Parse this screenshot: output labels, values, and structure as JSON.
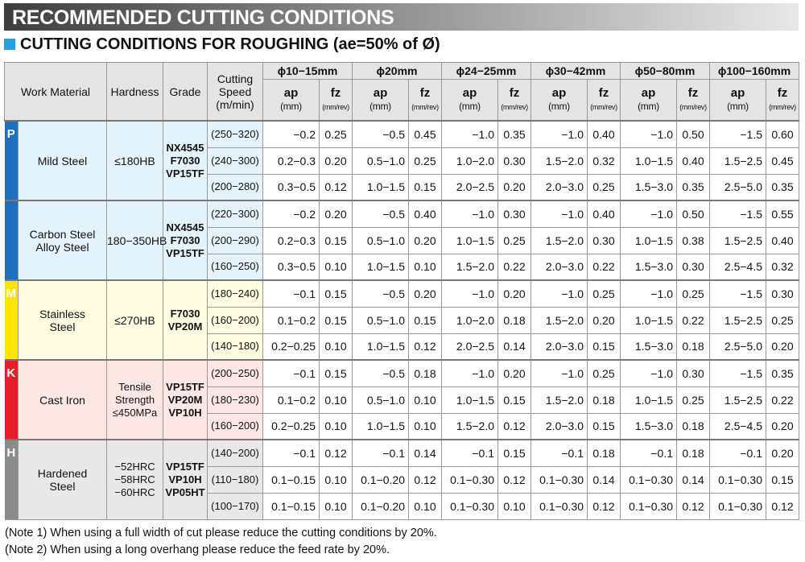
{
  "header": {
    "title": "RECOMMENDED CUTTING CONDITIONS",
    "subtitle": "CUTTING CONDITIONS FOR ROUGHING (ae=50% of Ø)"
  },
  "table": {
    "columns": {
      "work_material": "Work Material",
      "hardness": "Hardness",
      "grade": "Grade",
      "speed": [
        "Cutting",
        "Speed",
        "(m/min)"
      ],
      "diameters": [
        "ϕ10−15mm",
        "ϕ20mm",
        "ϕ24−25mm",
        "ϕ30−42mm",
        "ϕ50−80mm",
        "ϕ100−160mm"
      ],
      "ap": "ap",
      "ap_unit": "(mm)",
      "fz": "fz",
      "fz_unit": "(mm/rev)"
    },
    "groups": [
      {
        "letter": "P",
        "material": [
          "Mild Steel"
        ],
        "hardness": [
          "≤180HB"
        ],
        "grades": [
          "NX4545",
          "F7030",
          "VP15TF"
        ],
        "rows": [
          {
            "speed": "(250−320)",
            "values": [
              "−0.2",
              "0.25",
              "−0.5",
              "0.45",
              "−1.0",
              "0.35",
              "−1.0",
              "0.40",
              "−1.0",
              "0.50",
              "−1.5",
              "0.60"
            ]
          },
          {
            "speed": "(240−300)",
            "values": [
              "0.2−0.3",
              "0.20",
              "0.5−1.0",
              "0.25",
              "1.0−2.0",
              "0.30",
              "1.5−2.0",
              "0.32",
              "1.0−1.5",
              "0.40",
              "1.5−2.5",
              "0.45"
            ]
          },
          {
            "speed": "(200−280)",
            "values": [
              "0.3−0.5",
              "0.12",
              "1.0−1.5",
              "0.15",
              "2.0−2.5",
              "0.20",
              "2.0−3.0",
              "0.25",
              "1.5−3.0",
              "0.35",
              "2.5−5.0",
              "0.35"
            ]
          }
        ]
      },
      {
        "letter": null,
        "material": [
          "Carbon Steel",
          "Alloy Steel"
        ],
        "hardness": [
          "180−350HB"
        ],
        "grades": [
          "NX4545",
          "F7030",
          "VP15TF"
        ],
        "rows": [
          {
            "speed": "(220−300)",
            "values": [
              "−0.2",
              "0.20",
              "−0.5",
              "0.40",
              "−1.0",
              "0.30",
              "−1.0",
              "0.40",
              "−1.0",
              "0.50",
              "−1.5",
              "0.55"
            ]
          },
          {
            "speed": "(200−290)",
            "values": [
              "0.2−0.3",
              "0.15",
              "0.5−1.0",
              "0.20",
              "1.0−1.5",
              "0.25",
              "1.5−2.0",
              "0.30",
              "1.0−1.5",
              "0.38",
              "1.5−2.5",
              "0.40"
            ]
          },
          {
            "speed": "(160−250)",
            "values": [
              "0.3−0.5",
              "0.10",
              "1.0−1.5",
              "0.10",
              "1.5−2.0",
              "0.22",
              "2.0−3.0",
              "0.22",
              "1.5−3.0",
              "0.30",
              "2.5−4.5",
              "0.32"
            ]
          }
        ]
      },
      {
        "letter": "M",
        "material": [
          "Stainless",
          "Steel"
        ],
        "hardness": [
          "≤270HB"
        ],
        "grades": [
          "F7030",
          "VP20M"
        ],
        "rows": [
          {
            "speed": "(180−240)",
            "values": [
              "−0.1",
              "0.15",
              "−0.5",
              "0.20",
              "−1.0",
              "0.20",
              "−1.0",
              "0.25",
              "−1.0",
              "0.25",
              "−1.5",
              "0.30"
            ]
          },
          {
            "speed": "(160−200)",
            "values": [
              "0.1−0.2",
              "0.15",
              "0.5−1.0",
              "0.15",
              "1.0−2.0",
              "0.18",
              "1.5−2.0",
              "0.20",
              "1.0−1.5",
              "0.22",
              "1.5−2.5",
              "0.25"
            ]
          },
          {
            "speed": "(140−180)",
            "values": [
              "0.2−0.25",
              "0.10",
              "1.0−1.5",
              "0.12",
              "2.0−2.5",
              "0.14",
              "2.0−3.0",
              "0.15",
              "1.5−3.0",
              "0.18",
              "2.5−5.0",
              "0.20"
            ]
          }
        ]
      },
      {
        "letter": "K",
        "material": [
          "Cast Iron"
        ],
        "hardness": [
          "Tensile",
          "Strength",
          "≤450MPa"
        ],
        "grades": [
          "VP15TF",
          "VP20M",
          "VP10H"
        ],
        "rows": [
          {
            "speed": "(200−250)",
            "values": [
              "−0.1",
              "0.15",
              "−0.5",
              "0.18",
              "−1.0",
              "0.20",
              "−1.0",
              "0.25",
              "−1.0",
              "0.30",
              "−1.5",
              "0.35"
            ]
          },
          {
            "speed": "(180−230)",
            "values": [
              "0.1−0.2",
              "0.10",
              "0.5−1.0",
              "0.10",
              "1.0−1.5",
              "0.15",
              "1.5−2.0",
              "0.18",
              "1.0−1.5",
              "0.25",
              "1.5−2.5",
              "0.22"
            ]
          },
          {
            "speed": "(160−200)",
            "values": [
              "0.2−0.25",
              "0.10",
              "1.0−1.5",
              "0.10",
              "1.5−2.0",
              "0.12",
              "2.0−3.0",
              "0.15",
              "1.5−3.0",
              "0.18",
              "2.5−4.5",
              "0.20"
            ]
          }
        ]
      },
      {
        "letter": "H",
        "material": [
          "Hardened",
          "Steel"
        ],
        "hardness": [
          "−52HRC",
          "−58HRC",
          "−60HRC"
        ],
        "grades": [
          "VP15TF",
          "VP10H",
          "VP05HT"
        ],
        "rows": [
          {
            "speed": "(140−200)",
            "values": [
              "−0.1",
              "0.12",
              "−0.1",
              "0.14",
              "−0.1",
              "0.15",
              "−0.1",
              "0.18",
              "−0.1",
              "0.18",
              "−0.1",
              "0.20"
            ]
          },
          {
            "speed": "(110−180)",
            "values": [
              "0.1−0.15",
              "0.10",
              "0.1−0.20",
              "0.12",
              "0.1−0.30",
              "0.12",
              "0.1−0.30",
              "0.14",
              "0.1−0.30",
              "0.14",
              "0.1−0.30",
              "0.15"
            ]
          },
          {
            "speed": "(100−170)",
            "values": [
              "0.1−0.15",
              "0.10",
              "0.1−0.20",
              "0.10",
              "0.1−0.30",
              "0.10",
              "0.1−0.30",
              "0.12",
              "0.1−0.30",
              "0.12",
              "0.1−0.30",
              "0.12"
            ]
          }
        ]
      }
    ]
  },
  "notes": [
    "(Note 1) When using a full width of cut please reduce the cutting conditions by 20%.",
    "(Note 2) When using a long overhang please reduce the feed rate by 20%."
  ]
}
